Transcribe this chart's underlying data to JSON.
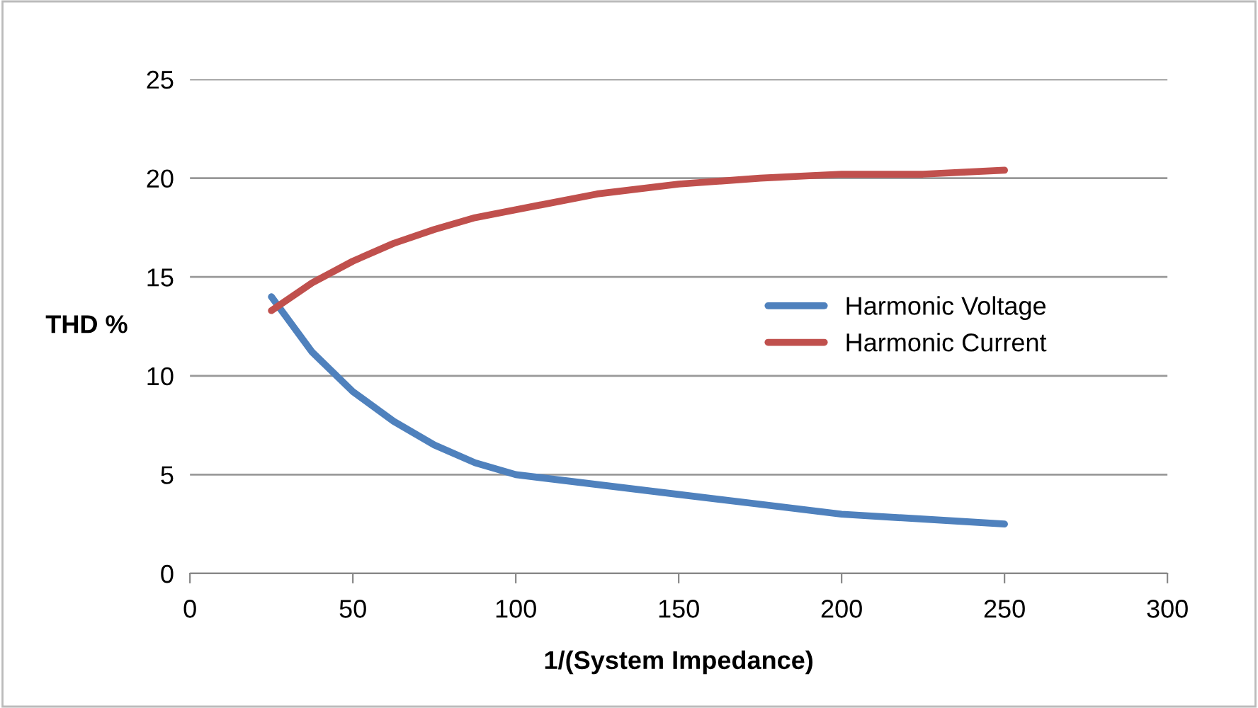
{
  "chart_data": {
    "type": "line",
    "xlabel": "1/(System Impedance)",
    "ylabel": "THD %",
    "x": [
      25,
      37.5,
      50,
      62.5,
      75,
      87.5,
      100,
      125,
      150,
      175,
      200,
      225,
      250
    ],
    "series": [
      {
        "name": "Harmonic Voltage",
        "color": "#4f81bd",
        "values": [
          14,
          11.2,
          9.2,
          7.7,
          6.5,
          5.6,
          5.0,
          4.5,
          4.0,
          3.5,
          3.0,
          2.75,
          2.5
        ]
      },
      {
        "name": "Harmonic Current",
        "color": "#c0504d",
        "values": [
          13.3,
          14.7,
          15.8,
          16.7,
          17.4,
          18.0,
          18.4,
          19.2,
          19.7,
          20.0,
          20.2,
          20.2,
          20.4
        ]
      }
    ],
    "xlim": [
      0,
      300
    ],
    "xticks": [
      0,
      50,
      100,
      150,
      200,
      250,
      300
    ],
    "ylim": [
      0,
      25
    ],
    "yticks": [
      0,
      5,
      10,
      15,
      20,
      25
    ],
    "grid": "y",
    "legend": "right",
    "marker": "none",
    "line_style": "solid"
  }
}
